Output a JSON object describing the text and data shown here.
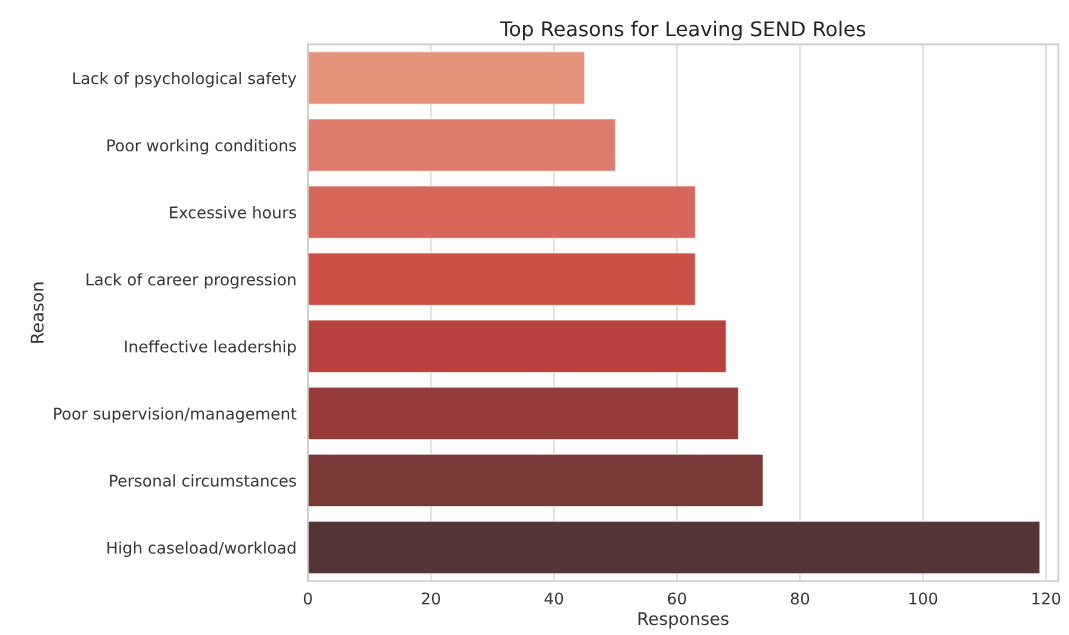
{
  "chart_data": {
    "type": "bar",
    "orientation": "horizontal",
    "title": "Top Reasons for Leaving SEND Roles",
    "xlabel": "Responses",
    "ylabel": "Reason",
    "categories": [
      "Lack of psychological safety",
      "Poor working conditions",
      "Excessive hours",
      "Lack of career progression",
      "Ineffective leadership",
      "Poor supervision/management",
      "Personal circumstances",
      "High caseload/workload"
    ],
    "values": [
      45,
      50,
      63,
      63,
      68,
      70,
      74,
      119
    ],
    "colors": [
      "#e6937d",
      "#df7b6c",
      "#d6665a",
      "#cd4f47",
      "#b8413e",
      "#963b37",
      "#783836",
      "#553436"
    ],
    "xlim": [
      0,
      122
    ],
    "xticks": [
      0,
      20,
      40,
      60,
      80,
      100,
      120
    ],
    "grid": "x"
  }
}
